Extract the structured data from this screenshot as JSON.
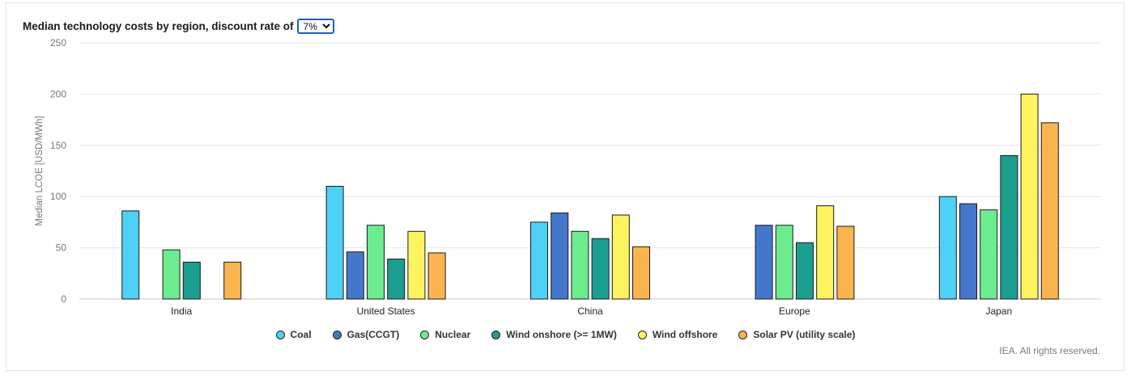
{
  "header": {
    "title": "Median technology costs by region, discount rate of",
    "discount_select": {
      "selected": "7%",
      "options": [
        "7%"
      ]
    }
  },
  "credit": "IEA. All rights reserved.",
  "colors": {
    "Coal": "#4fd0f7",
    "Gas(CCGT)": "#4477cc",
    "Nuclear": "#6deb8f",
    "Wind onshore (>= 1MW)": "#1a9e8f",
    "Wind offshore": "#fdf35f",
    "Solar PV (utility scale)": "#fbb44e"
  },
  "chart_data": {
    "type": "bar",
    "title": "Median technology costs by region, discount rate of 7%",
    "xlabel": "",
    "ylabel": "Median LCOE [USD/MWh]",
    "ylim": [
      0,
      250
    ],
    "yticks": [
      0,
      50,
      100,
      150,
      200,
      250
    ],
    "grid": true,
    "legend_position": "bottom",
    "categories": [
      "India",
      "United States",
      "China",
      "Europe",
      "Japan"
    ],
    "series": [
      {
        "name": "Coal",
        "values": [
          86,
          110,
          75,
          null,
          100
        ]
      },
      {
        "name": "Gas(CCGT)",
        "values": [
          null,
          46,
          84,
          72,
          93
        ]
      },
      {
        "name": "Nuclear",
        "values": [
          48,
          72,
          66,
          72,
          87
        ]
      },
      {
        "name": "Wind onshore (>= 1MW)",
        "values": [
          36,
          39,
          59,
          55,
          140
        ]
      },
      {
        "name": "Wind offshore",
        "values": [
          null,
          66,
          82,
          91,
          200
        ]
      },
      {
        "name": "Solar PV (utility scale)",
        "values": [
          36,
          45,
          51,
          71,
          172
        ]
      }
    ]
  }
}
